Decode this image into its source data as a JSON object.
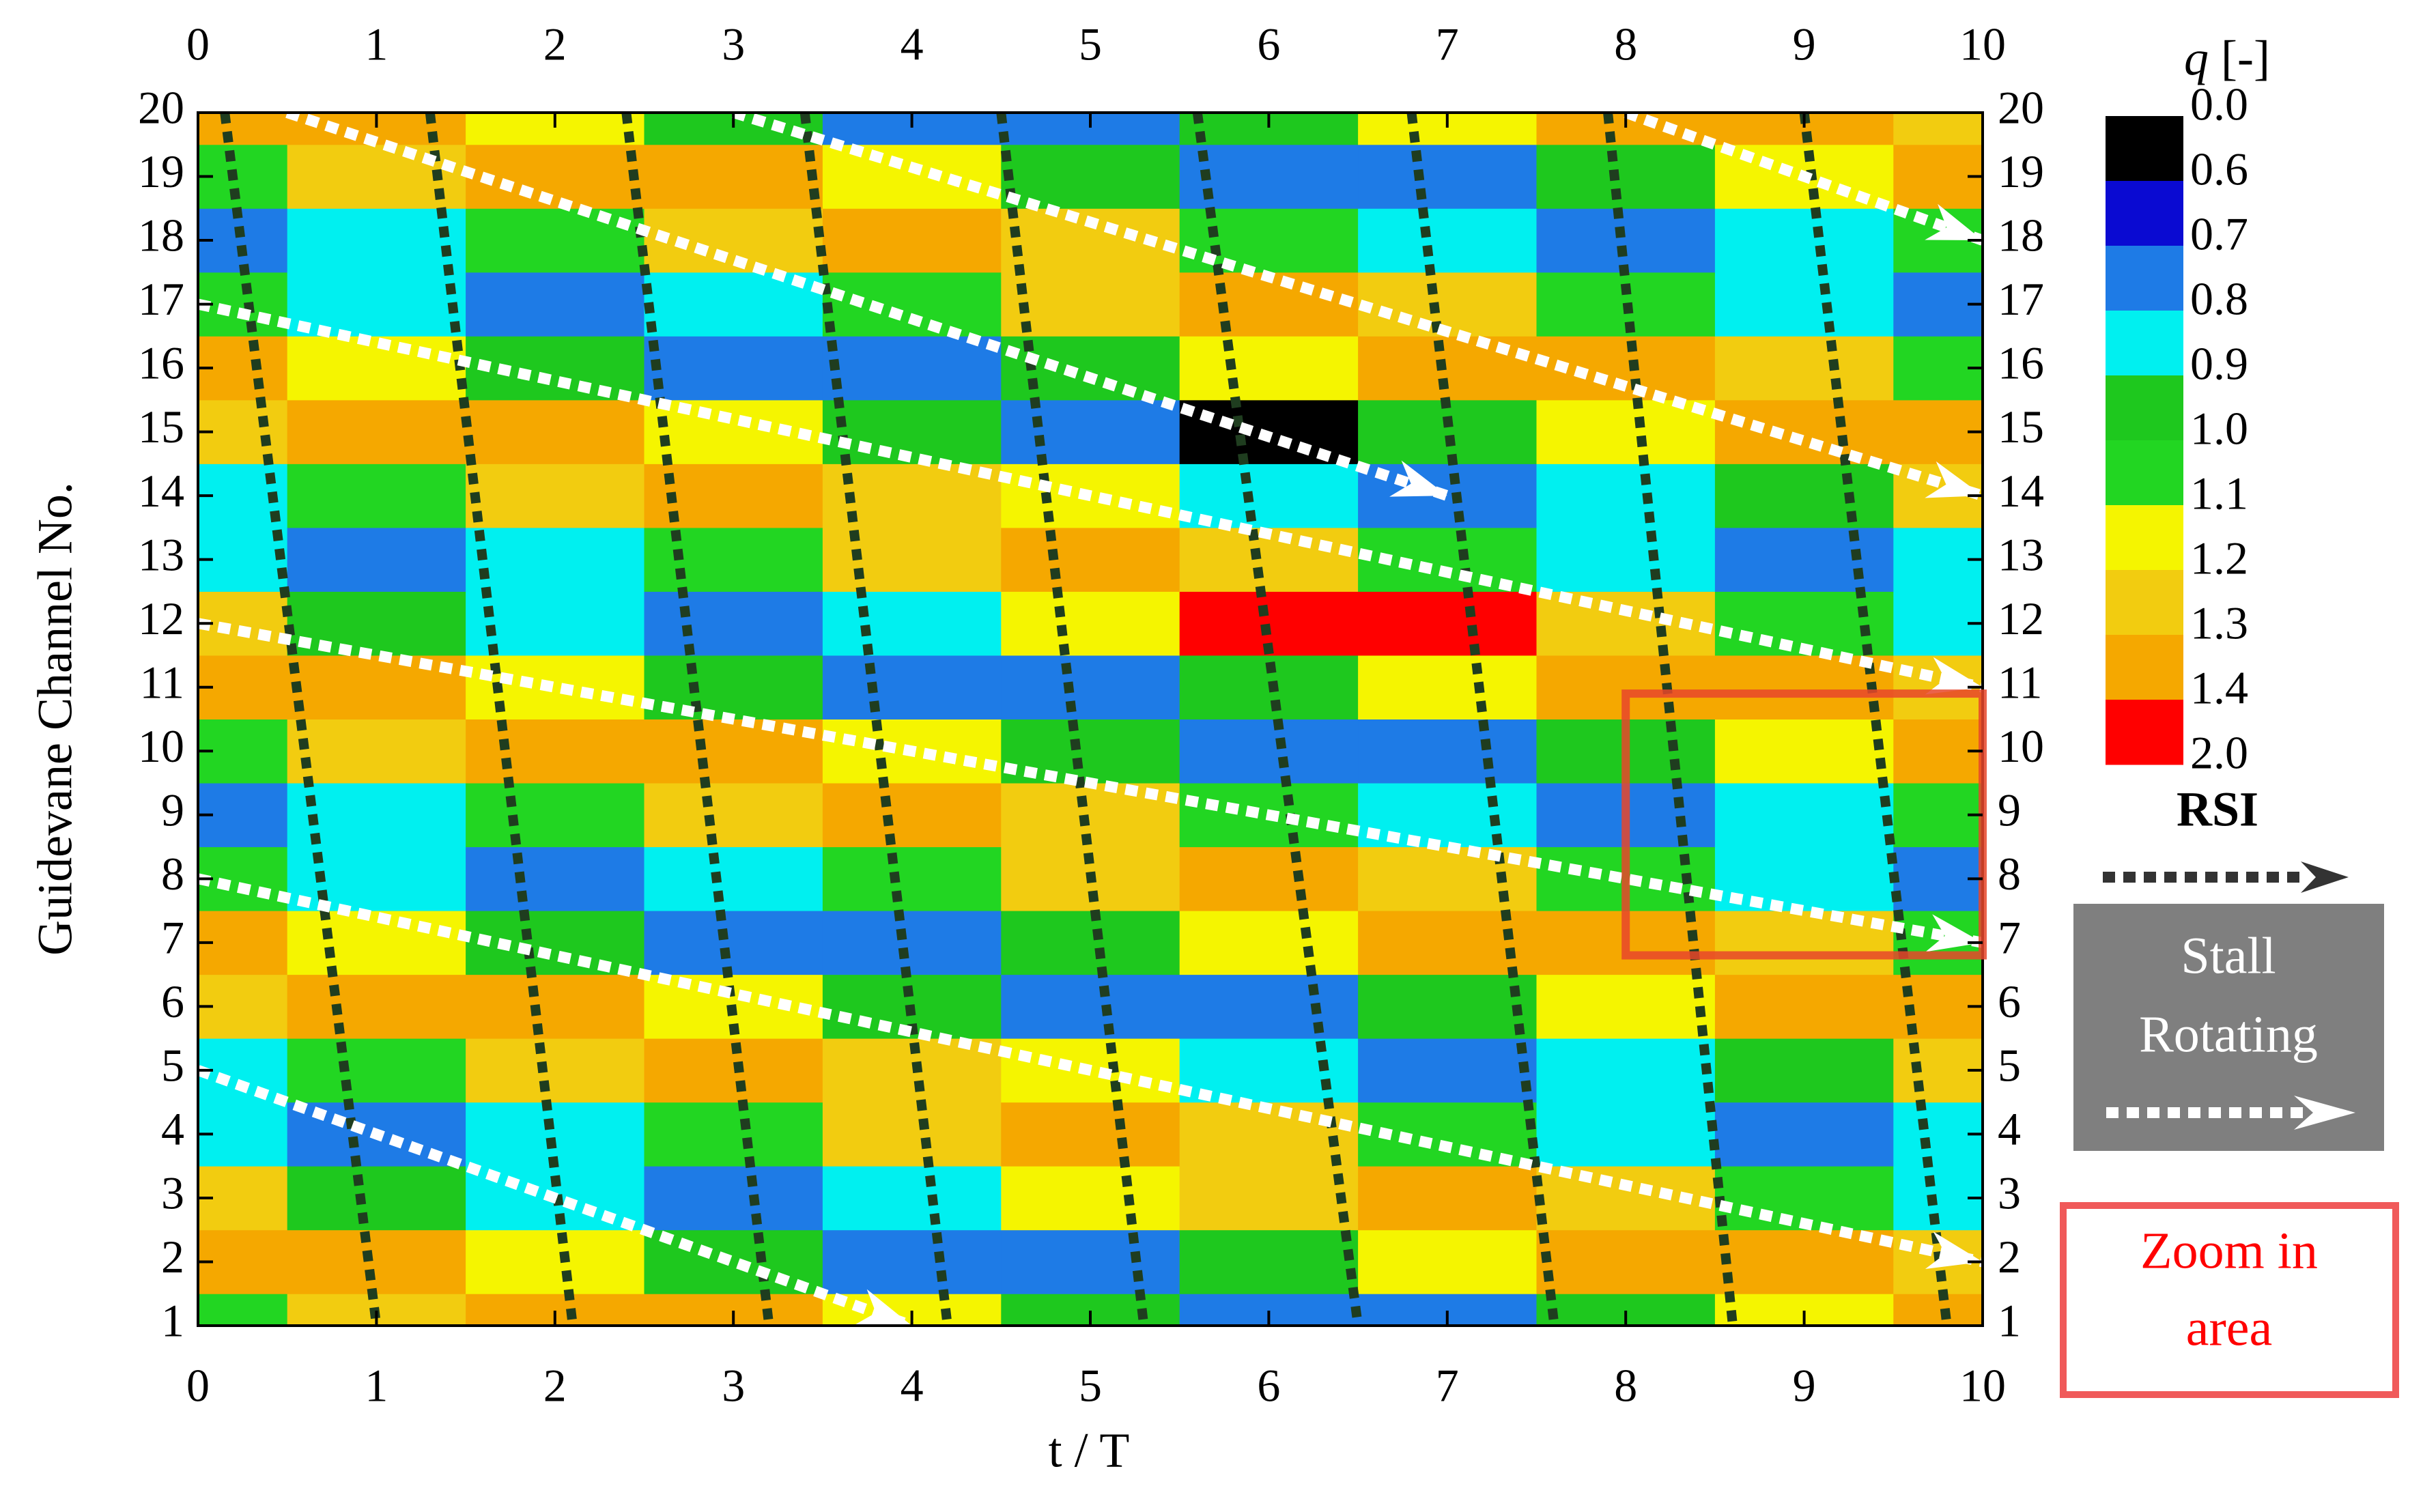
{
  "chart_data": {
    "type": "contour",
    "x_label": "t / T",
    "y_label": "Guidevane Channel No.",
    "colorbar_label": "q",
    "colorbar_unit": "[-]",
    "x": [
      0,
      1,
      2,
      3,
      4,
      5,
      6,
      7,
      8,
      9,
      10
    ],
    "y": [
      1,
      2,
      3,
      4,
      5,
      6,
      7,
      8,
      9,
      10,
      11,
      12,
      13,
      14,
      15,
      16,
      17,
      18,
      19,
      20
    ],
    "z": [
      [
        1.0,
        1.22,
        1.34,
        1.3,
        1.12,
        0.9,
        0.76,
        0.79,
        0.96,
        1.18,
        1.33
      ],
      [
        1.33,
        1.32,
        1.16,
        0.94,
        0.78,
        0.77,
        0.92,
        1.14,
        1.31,
        1.34,
        1.2
      ],
      [
        1.2,
        0.98,
        0.8,
        0.76,
        0.88,
        1.1,
        1.29,
        1.35,
        1.23,
        1.02,
        0.82
      ],
      [
        0.82,
        0.75,
        0.85,
        1.06,
        1.27,
        1.35,
        1.27,
        1.04,
        0.85,
        0.75,
        0.82
      ],
      [
        0.82,
        1.02,
        1.23,
        1.35,
        1.29,
        1.1,
        0.88,
        0.76,
        0.8,
        0.98,
        1.2
      ],
      [
        1.2,
        1.34,
        1.31,
        1.14,
        0.92,
        0.77,
        0.78,
        0.94,
        1.16,
        1.32,
        1.33
      ],
      [
        1.33,
        1.18,
        0.96,
        0.79,
        0.76,
        0.9,
        1.12,
        1.3,
        1.34,
        1.22,
        1.0
      ],
      [
        1.0,
        0.81,
        0.75,
        0.87,
        1.08,
        1.28,
        1.35,
        1.25,
        1.04,
        0.83,
        0.75
      ],
      [
        0.75,
        0.83,
        1.04,
        1.25,
        1.35,
        1.28,
        1.08,
        0.87,
        0.75,
        0.81,
        1.0
      ],
      [
        1.0,
        1.22,
        1.34,
        1.3,
        1.12,
        0.9,
        0.76,
        0.79,
        0.96,
        1.18,
        1.33
      ],
      [
        1.33,
        1.32,
        1.16,
        0.94,
        0.78,
        0.77,
        0.92,
        1.14,
        1.31,
        1.34,
        1.2
      ],
      [
        1.2,
        0.98,
        0.8,
        0.76,
        0.88,
        1.1,
        1.5,
        1.5,
        1.23,
        1.02,
        0.82
      ],
      [
        0.82,
        0.75,
        0.85,
        1.06,
        1.27,
        1.35,
        1.27,
        1.04,
        0.85,
        0.75,
        0.82
      ],
      [
        0.82,
        1.02,
        1.23,
        1.35,
        1.29,
        1.1,
        0.88,
        0.76,
        0.8,
        0.98,
        1.2
      ],
      [
        1.2,
        1.34,
        1.31,
        1.14,
        0.92,
        0.77,
        0.55,
        0.94,
        1.16,
        1.32,
        1.33
      ],
      [
        1.33,
        1.18,
        0.96,
        0.79,
        0.76,
        0.9,
        1.12,
        1.3,
        1.34,
        1.22,
        1.0
      ],
      [
        1.0,
        0.81,
        0.75,
        0.87,
        1.08,
        1.28,
        1.35,
        1.25,
        1.04,
        0.83,
        0.75
      ],
      [
        0.75,
        0.83,
        1.04,
        1.25,
        1.35,
        1.28,
        1.08,
        0.87,
        0.75,
        0.81,
        1.0
      ],
      [
        1.0,
        1.22,
        1.34,
        1.3,
        1.12,
        0.9,
        0.76,
        0.79,
        0.96,
        1.18,
        1.33
      ],
      [
        1.33,
        1.32,
        1.16,
        0.94,
        0.78,
        0.77,
        0.92,
        1.14,
        1.31,
        1.34,
        1.2
      ]
    ],
    "levels": [
      {
        "value": 0,
        "label": "0.0"
      },
      0.6,
      0.7,
      0.8,
      0.9,
      {
        "value": 1,
        "label": "1.0"
      },
      1.1,
      1.2,
      1.3,
      1.4,
      {
        "value": 2,
        "label": "2.0"
      }
    ],
    "colors": [
      "#000000",
      "#0a0ad2",
      "#1e7be6",
      "#00f0f0",
      "#1ec81e",
      "#22d622",
      "#f5f500",
      "#f2cc10",
      "#f5a800",
      "#ff0000"
    ],
    "xlim": [
      0,
      10
    ],
    "ylim": [
      1,
      20
    ],
    "xticks": [
      0,
      1,
      2,
      3,
      4,
      5,
      6,
      7,
      8,
      9,
      10
    ],
    "yticks": [
      1,
      2,
      3,
      4,
      5,
      6,
      7,
      8,
      9,
      10,
      11,
      12,
      13,
      14,
      15,
      16,
      17,
      18,
      19,
      20
    ],
    "rsi_lines": [
      [
        0.15,
        20,
        1.0,
        1
      ],
      [
        1.3,
        20,
        2.1,
        1
      ],
      [
        2.4,
        20,
        3.2,
        1
      ],
      [
        3.4,
        20,
        4.2,
        1
      ],
      [
        4.5,
        20,
        5.3,
        1
      ],
      [
        5.6,
        20,
        6.5,
        1
      ],
      [
        6.8,
        20,
        7.6,
        1
      ],
      [
        7.9,
        20,
        8.6,
        1
      ],
      [
        9.0,
        20,
        9.8,
        1
      ]
    ],
    "stall_lines": [
      [
        0.5,
        20,
        7,
        14
      ],
      [
        8,
        20,
        10,
        18
      ],
      [
        3,
        20,
        10,
        14
      ],
      [
        0,
        17,
        10,
        11
      ],
      [
        0,
        12,
        10,
        7
      ],
      [
        0,
        8,
        10,
        2
      ],
      [
        0,
        5,
        4,
        1
      ]
    ],
    "zoom_box": {
      "x": [
        8,
        10
      ],
      "y": [
        6.8,
        10.9
      ]
    },
    "legend": {
      "rsi": "RSI",
      "stall": [
        "Stall",
        "Rotating"
      ],
      "zoom": [
        "Zoom in",
        "area"
      ]
    }
  }
}
